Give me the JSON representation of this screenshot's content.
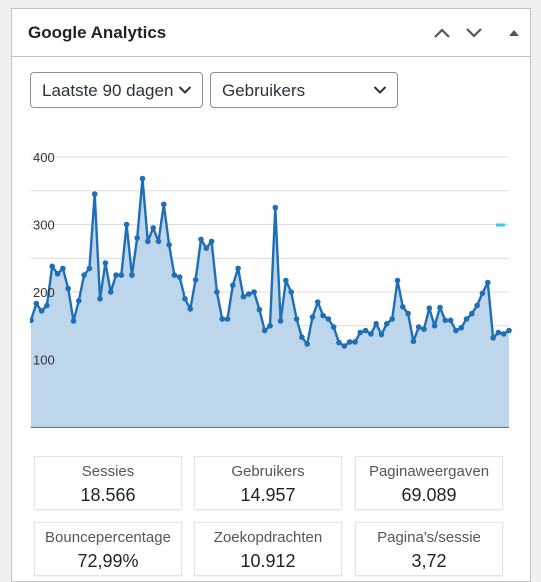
{
  "widget": {
    "title": "Google Analytics"
  },
  "controls": {
    "period": "Laatste 90 dagen",
    "metric": "Gebruikers"
  },
  "icons": {
    "move_up": "chevron-up-icon",
    "move_down": "chevron-down-icon",
    "toggle": "triangle-up-icon",
    "select_arrow": "chevron-down-icon"
  },
  "colors": {
    "line": "#1e6fb5",
    "area": "#b9d4ea",
    "accent_marker": "#2fd0e0"
  },
  "chart_data": {
    "type": "area",
    "ylim": [
      0,
      400
    ],
    "yticks": [
      "400",
      "300",
      "200",
      "100"
    ],
    "grid": true,
    "values": [
      158,
      183,
      172,
      180,
      238,
      227,
      235,
      205,
      157,
      187,
      225,
      235,
      345,
      190,
      243,
      200,
      225,
      225,
      300,
      225,
      280,
      368,
      275,
      295,
      275,
      330,
      270,
      225,
      222,
      190,
      175,
      218,
      278,
      265,
      275,
      200,
      160,
      160,
      210,
      235,
      193,
      197,
      200,
      174,
      143,
      150,
      325,
      157,
      217,
      200,
      160,
      133,
      123,
      163,
      185,
      165,
      160,
      148,
      125,
      120,
      126,
      126,
      140,
      143,
      138,
      153,
      137,
      153,
      160,
      217,
      178,
      168,
      127,
      148,
      145,
      176,
      150,
      177,
      158,
      158,
      143,
      147,
      160,
      168,
      180,
      198,
      214,
      132,
      140,
      138,
      143
    ]
  },
  "stats": [
    {
      "label": "Sessies",
      "value": "18.566"
    },
    {
      "label": "Gebruikers",
      "value": "14.957"
    },
    {
      "label": "Paginaweergaven",
      "value": "69.089"
    },
    {
      "label": "Bouncepercentage",
      "value": "72,99%"
    },
    {
      "label": "Zoekopdrachten",
      "value": "10.912"
    },
    {
      "label": "Pagina's/sessie",
      "value": "3,72"
    }
  ]
}
